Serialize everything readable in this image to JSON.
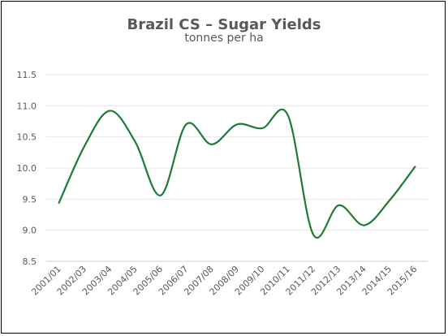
{
  "chart_data": {
    "type": "line",
    "title": "Brazil CS – Sugar Yields",
    "subtitle": "tonnes per ha",
    "xlabel": "",
    "ylabel": "",
    "categories": [
      "2001/01",
      "2002/03",
      "2003/04",
      "2004/05",
      "2005/06",
      "2006/07",
      "2007/08",
      "2008/09",
      "2009/10",
      "2010/11",
      "2011/12",
      "2012/13",
      "2013/14",
      "2014/15",
      "2015/16"
    ],
    "series": [
      {
        "values": [
          9.44,
          10.35,
          10.92,
          10.42,
          9.56,
          10.7,
          10.38,
          10.7,
          10.64,
          10.85,
          8.93,
          9.4,
          9.08,
          9.48,
          10.02
        ]
      }
    ],
    "ylim": [
      8.5,
      11.5
    ],
    "yticks": [
      "8.5",
      "9.0",
      "9.5",
      "10.0",
      "10.5",
      "11.0",
      "11.5"
    ],
    "grid": true,
    "line_color": "#1e7b35"
  }
}
